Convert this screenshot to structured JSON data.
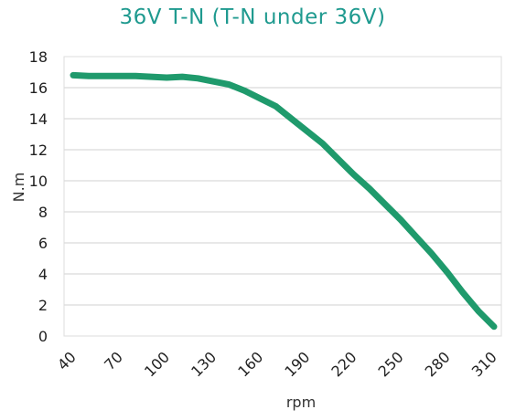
{
  "chart_data": {
    "type": "line",
    "title": "36V T-N (T-N under 36V)",
    "xlabel": "rpm",
    "ylabel": "N.m",
    "xlim": [
      40,
      310
    ],
    "ylim": [
      0,
      18
    ],
    "xticks": [
      40,
      70,
      100,
      130,
      160,
      190,
      220,
      250,
      280,
      310
    ],
    "yticks": [
      0,
      2,
      4,
      6,
      8,
      10,
      12,
      14,
      16,
      18
    ],
    "grid": "horizontal",
    "series": [
      {
        "color": "#1f9a6c",
        "points": [
          [
            40,
            16.8
          ],
          [
            50,
            16.75
          ],
          [
            60,
            16.75
          ],
          [
            70,
            16.75
          ],
          [
            80,
            16.75
          ],
          [
            90,
            16.7
          ],
          [
            100,
            16.65
          ],
          [
            110,
            16.7
          ],
          [
            120,
            16.6
          ],
          [
            130,
            16.4
          ],
          [
            140,
            16.2
          ],
          [
            150,
            15.8
          ],
          [
            160,
            15.3
          ],
          [
            170,
            14.8
          ],
          [
            180,
            14.0
          ],
          [
            190,
            13.2
          ],
          [
            200,
            12.4
          ],
          [
            210,
            11.4
          ],
          [
            220,
            10.4
          ],
          [
            230,
            9.5
          ],
          [
            240,
            8.5
          ],
          [
            250,
            7.5
          ],
          [
            260,
            6.4
          ],
          [
            270,
            5.3
          ],
          [
            280,
            4.1
          ],
          [
            290,
            2.8
          ],
          [
            300,
            1.6
          ],
          [
            310,
            0.6
          ]
        ]
      }
    ]
  },
  "colors": {
    "title": "#1f9a8f",
    "line": "#1f9a6c",
    "grid": "#d0d0d0",
    "frame": "#dddddd"
  }
}
